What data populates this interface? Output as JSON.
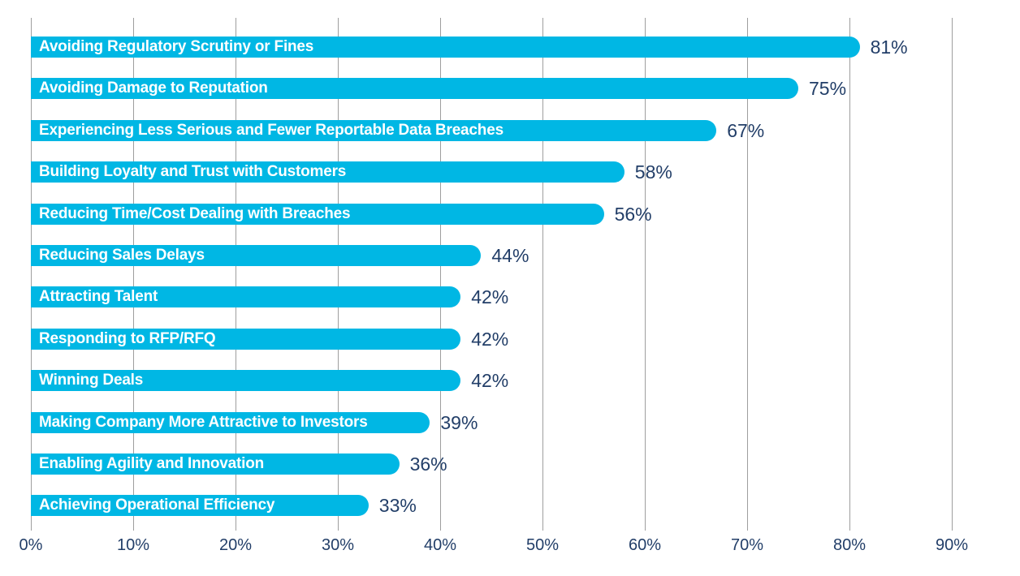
{
  "chart_data": {
    "type": "bar",
    "orientation": "horizontal",
    "title": "",
    "xlabel": "",
    "ylabel": "",
    "categories": [
      "Avoiding Regulatory Scrutiny or Fines",
      "Avoiding Damage to Reputation",
      "Experiencing Less Serious and Fewer Reportable Data Breaches",
      "Building Loyalty and Trust with Customers",
      "Reducing Time/Cost Dealing with Breaches",
      "Reducing Sales Delays",
      "Attracting Talent",
      "Responding to RFP/RFQ",
      "Winning Deals",
      "Making Company More Attractive to Investors",
      "Enabling Agility and Innovation",
      "Achieving Operational Efficiency"
    ],
    "values": [
      81,
      75,
      67,
      58,
      56,
      44,
      42,
      42,
      42,
      39,
      36,
      33
    ],
    "value_labels": [
      "81%",
      "75%",
      "67%",
      "58%",
      "56%",
      "44%",
      "42%",
      "42%",
      "42%",
      "39%",
      "36%",
      "33%"
    ],
    "xlim": [
      0,
      90
    ],
    "x_ticks": [
      "0%",
      "10%",
      "20%",
      "30%",
      "40%",
      "50%",
      "60%",
      "70%",
      "80%",
      "90%"
    ],
    "grid": "vertical-only",
    "legend": "none"
  },
  "colors": {
    "bar": "#00b7e4",
    "bar_label_text": "#ffffff",
    "value_text": "#223e68",
    "axis_text": "#223e68",
    "gridline": "#9e9e9e",
    "background": "#ffffff"
  }
}
